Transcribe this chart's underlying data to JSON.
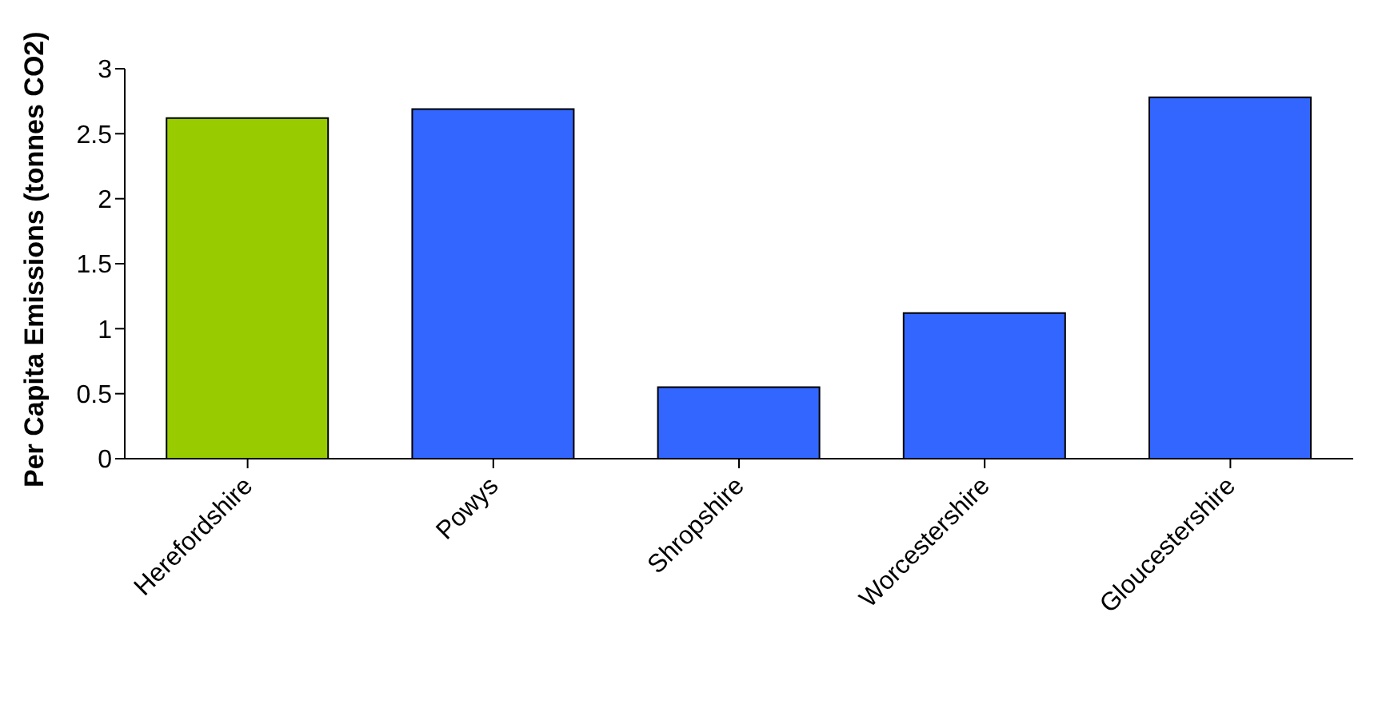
{
  "chart_data": {
    "type": "bar",
    "ylabel": "Per Capita Emissions (tonnes CO2)",
    "categories": [
      "Herefordshire",
      "Powys",
      "Shropshire",
      "Worcestershire",
      "Gloucestershire"
    ],
    "values": [
      2.62,
      2.69,
      0.55,
      1.12,
      2.78
    ],
    "colors": [
      "#99cc00",
      "#3366ff",
      "#3366ff",
      "#3366ff",
      "#3366ff"
    ],
    "ylim": [
      0,
      3
    ],
    "yticks": [
      0,
      {
        "value": 0.5,
        "label": "0.5"
      },
      1,
      {
        "value": 1.5,
        "label": "1.5"
      },
      2,
      {
        "value": 2.5,
        "label": "2.5"
      },
      3
    ],
    "grid": false,
    "legend": false
  }
}
